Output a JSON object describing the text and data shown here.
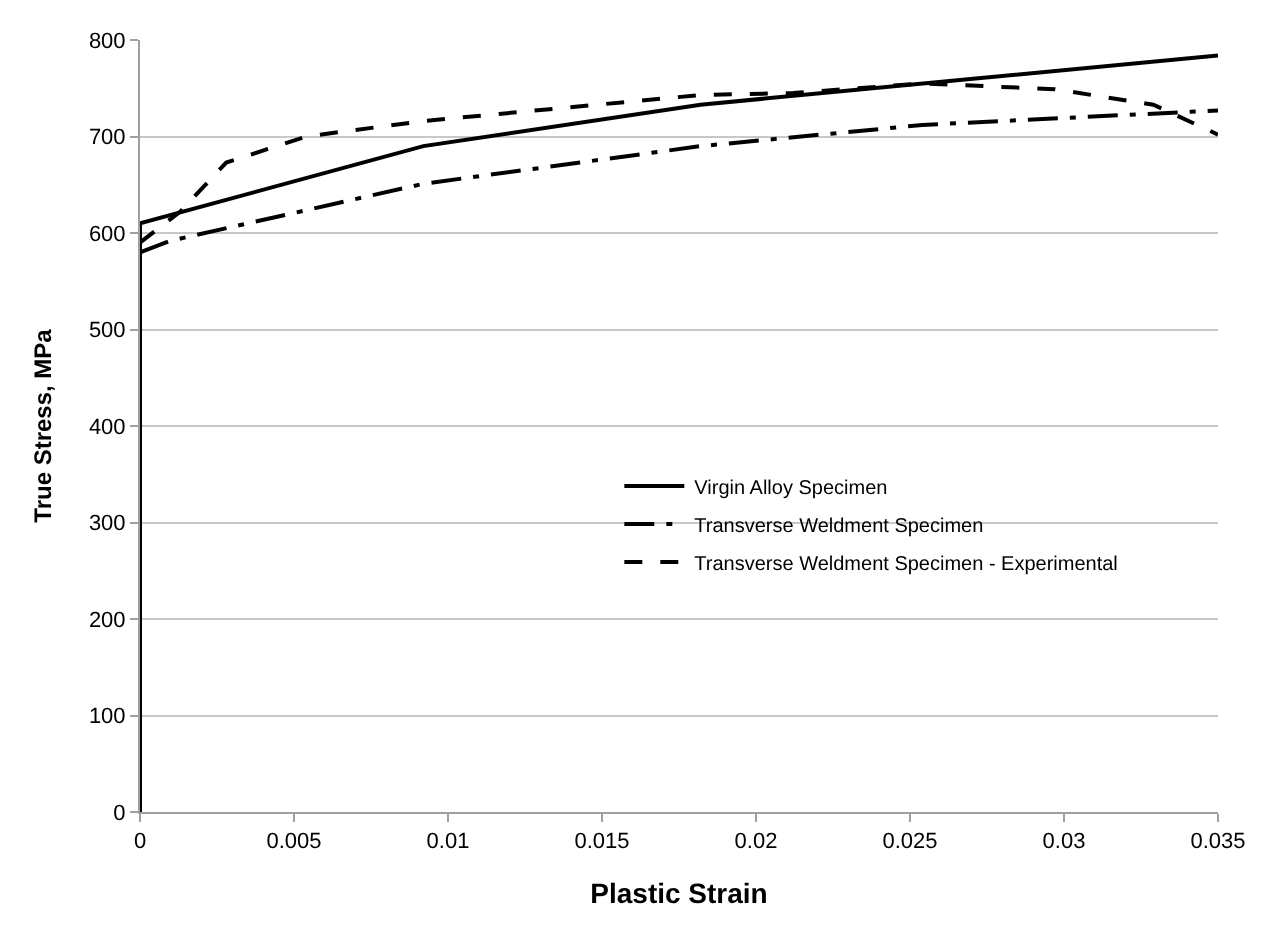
{
  "chart_data": {
    "type": "line",
    "xlabel": "Plastic Strain",
    "ylabel": "True Stress, MPa",
    "xlim": [
      0,
      0.035
    ],
    "xticks": [
      0,
      0.005,
      0.01,
      0.015,
      0.02,
      0.025,
      0.03,
      0.035
    ],
    "ylim": [
      0,
      800
    ],
    "yticks": [
      0,
      100,
      200,
      300,
      400,
      500,
      600,
      700,
      800
    ],
    "grid": "y",
    "legend": "right",
    "marker": "none",
    "series": [
      {
        "name": "Virgin Alloy Specimen",
        "color": "#000000",
        "line_style": "solid",
        "x": [
          0,
          0,
          0.0092,
          0.0182,
          0.035
        ],
        "values": [
          0,
          610,
          690,
          733,
          784
        ]
      },
      {
        "name": "Transverse Weldment Specimen",
        "color": "#000000",
        "line_style": "dashdot",
        "x": [
          0,
          0.001,
          0.0092,
          0.0182,
          0.0254,
          0.035
        ],
        "values": [
          580,
          592,
          651,
          690,
          712,
          727
        ]
      },
      {
        "name": "Transverse Weldment Specimen - Experimental",
        "color": "#000000",
        "line_style": "dashed",
        "x": [
          0,
          0.0013,
          0.0028,
          0.0054,
          0.0092,
          0.0182,
          0.0212,
          0.0254,
          0.0297,
          0.0329,
          0.035
        ],
        "values": [
          590,
          622,
          673,
          700,
          716,
          743,
          745,
          755,
          749,
          733,
          702
        ]
      }
    ]
  }
}
